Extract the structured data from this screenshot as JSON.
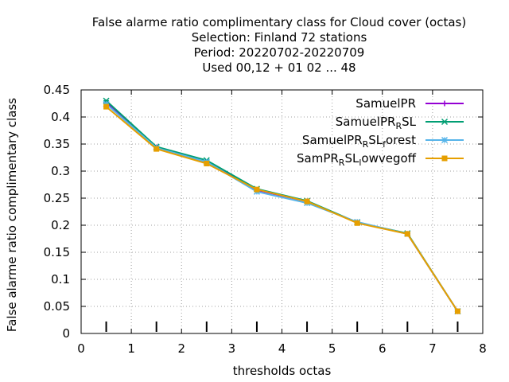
{
  "colors": {
    "background": "#ffffff",
    "grid": "#a0a0a0",
    "axis": "#000000"
  },
  "chart_data": {
    "type": "line",
    "title_lines": [
      "False alarme ratio complimentary class  for Cloud cover (octas)",
      "Selection: Finland     72 stations",
      "Period: 20220702-20220709",
      "Used  00,12  + 01 02 ... 48"
    ],
    "xlabel": "thresholds octas",
    "ylabel": "False alarme ratio complimentary class",
    "xlim": [
      0,
      8
    ],
    "ylim": [
      0,
      0.45
    ],
    "xticks": [
      "0",
      "1",
      "2",
      "3",
      "4",
      "5",
      "6",
      "7",
      "8"
    ],
    "yticks": [
      "0",
      "0.05",
      "0.1",
      "0.15",
      "0.2",
      "0.25",
      "0.3",
      "0.35",
      "0.4",
      "0.45"
    ],
    "grid": true,
    "legend_position": "top-right",
    "threshold_marks_x": [
      0.5,
      1.5,
      2.5,
      3.5,
      4.5,
      5.5,
      6.5,
      7.5
    ],
    "x": [
      0.5,
      1.5,
      2.5,
      3.5,
      4.5,
      5.5,
      6.5,
      7.5
    ],
    "series": [
      {
        "name": "SamuelPR",
        "legend_main": "SamuelPR",
        "legend_sub": "",
        "legend_tail": "",
        "color": "#9400d3",
        "marker": "plus",
        "values": [
          0.427,
          0.344,
          0.316,
          0.265,
          0.244,
          0.205,
          0.184,
          0.041
        ]
      },
      {
        "name": "SamuelPR_RSL",
        "legend_main": "SamuelPR",
        "legend_sub": "R",
        "legend_tail": "SL",
        "color": "#009e73",
        "marker": "x",
        "values": [
          0.43,
          0.345,
          0.32,
          0.267,
          0.245,
          0.205,
          0.185,
          0.041
        ]
      },
      {
        "name": "SamuelPR_RSL_forest",
        "legend_main": "SamuelPR",
        "legend_sub": "R",
        "legend_tail": "SL",
        "legend_sub2": "f",
        "legend_tail2": "orest",
        "color": "#56b4e9",
        "marker": "star",
        "values": [
          0.424,
          0.343,
          0.317,
          0.262,
          0.241,
          0.206,
          0.184,
          0.041
        ]
      },
      {
        "name": "SamPR_RSL_lowvegoff",
        "legend_main": "SamPR",
        "legend_sub": "R",
        "legend_tail": "SL",
        "legend_sub2": "l",
        "legend_tail2": "owvegoff",
        "color": "#e69f00",
        "marker": "square",
        "values": [
          0.419,
          0.341,
          0.314,
          0.266,
          0.244,
          0.204,
          0.184,
          0.041
        ]
      }
    ]
  }
}
